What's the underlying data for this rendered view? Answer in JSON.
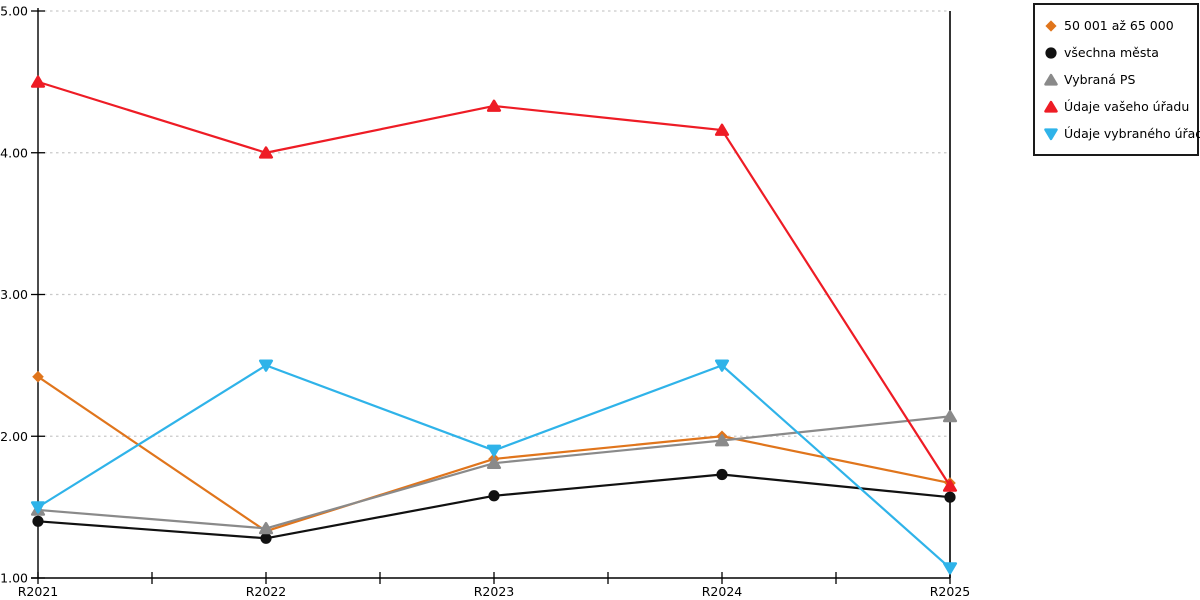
{
  "page": {
    "background": "#ffffff",
    "axis_color": "#000000",
    "grid_color": "#c9c9c9",
    "text_color": "#000000"
  },
  "chart_data": {
    "type": "line",
    "title": "",
    "xlabel": "",
    "ylabel": "",
    "categories": [
      "R2021",
      "R2022",
      "R2023",
      "R2024",
      "R2025"
    ],
    "series": [
      {
        "name": "50 001 až 65 000",
        "color": "#e0751c",
        "marker": "diamond",
        "values": [
          2.42,
          1.33,
          1.84,
          2.0,
          1.67
        ]
      },
      {
        "name": "všechna města",
        "color": "#111111",
        "marker": "circle",
        "values": [
          1.4,
          1.28,
          1.58,
          1.73,
          1.57
        ]
      },
      {
        "name": "Vybraná PS",
        "color": "#8a8a8a",
        "marker": "triangle-up",
        "values": [
          1.48,
          1.35,
          1.81,
          1.97,
          2.14
        ]
      },
      {
        "name": "Údaje vašeho úřadu",
        "color": "#ee1c25",
        "marker": "triangle-up",
        "values": [
          4.5,
          4.0,
          4.33,
          4.16,
          1.65
        ]
      },
      {
        "name": "Údaje vybraného úřadu",
        "color": "#2fb3e9",
        "marker": "triangle-down",
        "values": [
          1.5,
          2.5,
          1.9,
          2.5,
          1.07
        ]
      }
    ],
    "ylim": [
      1.0,
      5.0
    ],
    "ytick_step": 1.0,
    "ytick_labels": [
      "1.00",
      "2.00",
      "3.00",
      "4.00",
      "5.00"
    ],
    "grid": "horizontal-dotted",
    "minor_x_ticks": "midpoints",
    "legend_position": "top-right"
  }
}
